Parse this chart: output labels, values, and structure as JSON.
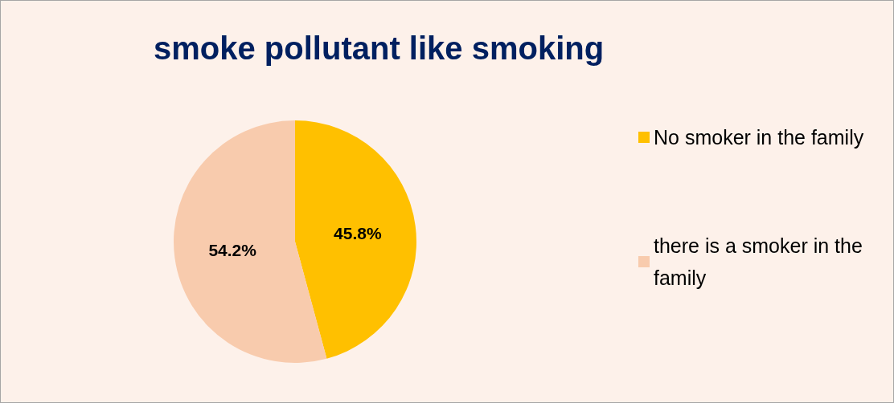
{
  "chart_data": {
    "type": "pie",
    "title": "smoke pollutant like smoking",
    "categories": [
      "No smoker in the family",
      "there is a smoker in the family"
    ],
    "values": [
      45.8,
      54.2
    ],
    "value_labels": [
      "45.8%",
      "54.2%"
    ],
    "colors": [
      "#ffc000",
      "#f8cbad"
    ],
    "legend": "right"
  }
}
